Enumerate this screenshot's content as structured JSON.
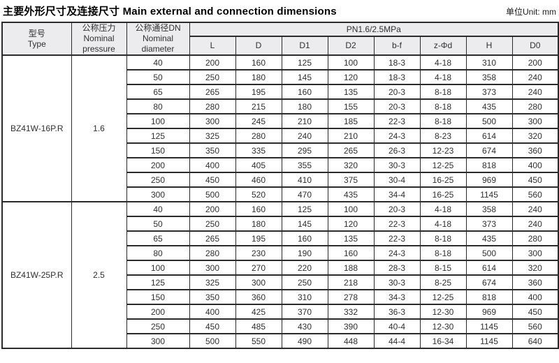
{
  "title": "主要外形尺寸及连接尺寸 Main external and connection dimensions",
  "unit_label": "单位Unit: mm",
  "table": {
    "header": {
      "type_label": "型号\nType",
      "pressure_label": "公称压力\nNominal\npressure",
      "diameter_label": "公称通径DN\nNominal\ndiameter",
      "pn_label": "PN1.6/2.5MPa",
      "dims": [
        "L",
        "D",
        "D1",
        "D2",
        "b-f",
        "z-Φd",
        "H",
        "D0"
      ]
    },
    "groups": [
      {
        "type": "BZ41W-16P.R",
        "pressure": "1.6",
        "rows": [
          [
            "40",
            "200",
            "160",
            "125",
            "100",
            "18-3",
            "4-18",
            "310",
            "200"
          ],
          [
            "50",
            "250",
            "180",
            "145",
            "120",
            "18-3",
            "4-18",
            "358",
            "240"
          ],
          [
            "65",
            "265",
            "195",
            "160",
            "135",
            "20-3",
            "8-18",
            "373",
            "240"
          ],
          [
            "80",
            "280",
            "215",
            "180",
            "155",
            "20-3",
            "8-18",
            "435",
            "280"
          ],
          [
            "100",
            "300",
            "245",
            "210",
            "185",
            "22-3",
            "8-18",
            "500",
            "300"
          ],
          [
            "125",
            "325",
            "280",
            "240",
            "210",
            "24-3",
            "8-23",
            "614",
            "320"
          ],
          [
            "150",
            "350",
            "335",
            "295",
            "265",
            "26-3",
            "12-23",
            "674",
            "360"
          ],
          [
            "200",
            "400",
            "405",
            "355",
            "320",
            "30-3",
            "12-25",
            "818",
            "400"
          ],
          [
            "250",
            "450",
            "460",
            "410",
            "375",
            "30-4",
            "16-25",
            "969",
            "450"
          ],
          [
            "300",
            "500",
            "520",
            "470",
            "435",
            "34-4",
            "16-25",
            "1145",
            "560"
          ]
        ]
      },
      {
        "type": "BZ41W-25P.R",
        "pressure": "2.5",
        "rows": [
          [
            "40",
            "200",
            "160",
            "125",
            "100",
            "20-3",
            "4-18",
            "358",
            "240"
          ],
          [
            "50",
            "250",
            "180",
            "145",
            "120",
            "22-3",
            "4-18",
            "373",
            "240"
          ],
          [
            "65",
            "265",
            "195",
            "160",
            "135",
            "22-3",
            "8-18",
            "435",
            "280"
          ],
          [
            "80",
            "280",
            "230",
            "190",
            "160",
            "24-3",
            "8-18",
            "500",
            "300"
          ],
          [
            "100",
            "300",
            "270",
            "220",
            "188",
            "28-3",
            "8-15",
            "614",
            "320"
          ],
          [
            "125",
            "325",
            "300",
            "250",
            "218",
            "30-3",
            "8-25",
            "674",
            "360"
          ],
          [
            "150",
            "350",
            "360",
            "310",
            "278",
            "34-3",
            "12-25",
            "818",
            "400"
          ],
          [
            "200",
            "400",
            "425",
            "370",
            "332",
            "36-3",
            "12-30",
            "969",
            "450"
          ],
          [
            "250",
            "450",
            "485",
            "430",
            "390",
            "40-4",
            "12-30",
            "1145",
            "560"
          ],
          [
            "300",
            "500",
            "550",
            "490",
            "448",
            "44-4",
            "16-34",
            "1145",
            "640"
          ]
        ]
      }
    ]
  }
}
